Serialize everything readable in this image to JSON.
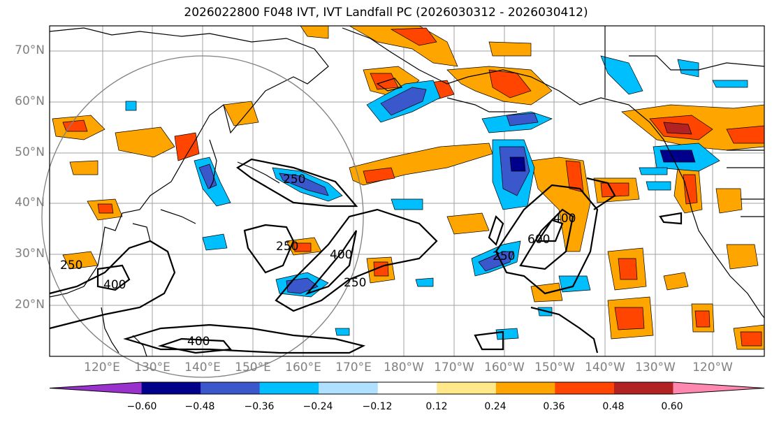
{
  "title": "2026022800 F048 IVT, IVT Landfall PC (2026030312 - 2026030412)",
  "lat_labels": [
    "70°N",
    "60°N",
    "50°N",
    "40°N",
    "30°N",
    "20°N"
  ],
  "lon_labels": [
    "120°E",
    "130°E",
    "140°E",
    "150°E",
    "160°E",
    "170°E",
    "180°W",
    "170°W",
    "160°W",
    "150°W",
    "140°W",
    "130°W",
    "120°W"
  ],
  "contour_labels": [
    "250",
    "250",
    "250",
    "250",
    "400",
    "400",
    "400",
    "400",
    "600",
    "250"
  ],
  "colorbar": {
    "ticks": [
      "−0.60",
      "−0.48",
      "−0.36",
      "−0.24",
      "−0.12",
      "0.12",
      "0.24",
      "0.36",
      "0.48",
      "0.60"
    ],
    "colors": [
      "#9932cc",
      "#00008b",
      "#3a57cc",
      "#00bfff",
      "#b0e0ff",
      "#ffffff",
      "#ffe88a",
      "#ffa500",
      "#ff4500",
      "#b22222",
      "#ff88b0"
    ]
  },
  "colors": {
    "land_outline": "#000000",
    "grid": "#a0a0a0",
    "ring": "#808080"
  }
}
